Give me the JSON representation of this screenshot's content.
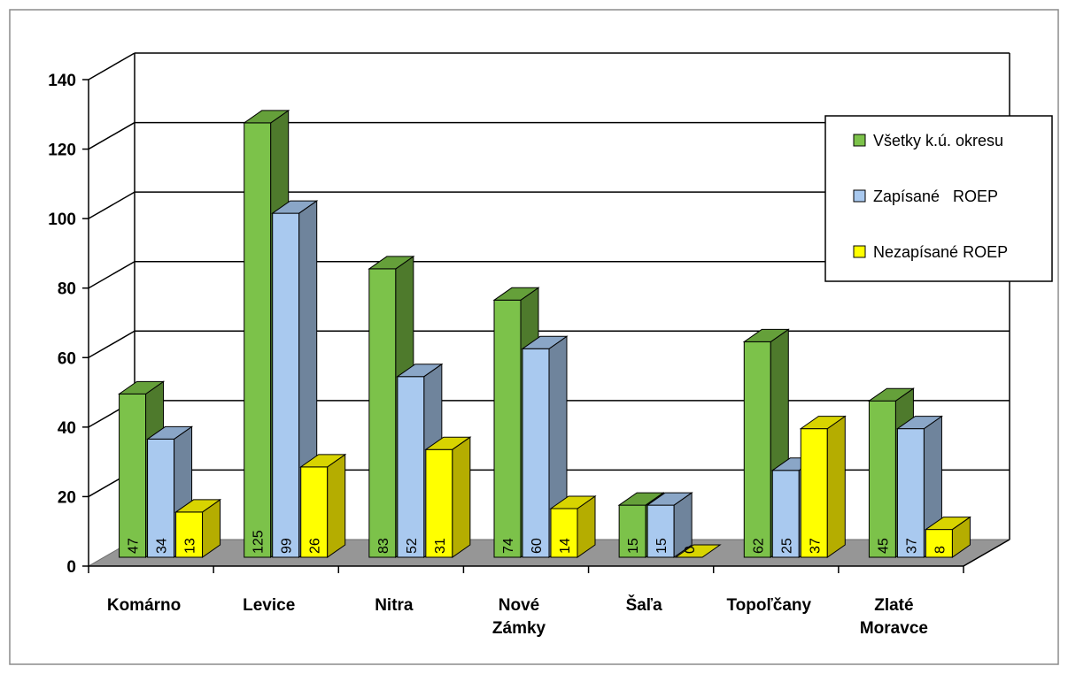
{
  "chart_data": {
    "type": "bar",
    "style": "3d-clustered-column",
    "categories": [
      "Komárno",
      "Levice",
      "Nitra",
      "Nové Zámky",
      "Šaľa",
      "Topoľčany",
      "Zlaté Moravce"
    ],
    "category_lines": [
      [
        "Komárno"
      ],
      [
        "Levice"
      ],
      [
        "Nitra"
      ],
      [
        "Nové",
        "Zámky"
      ],
      [
        "Šaľa"
      ],
      [
        "Topoľčany"
      ],
      [
        "Zlaté",
        "Moravce"
      ]
    ],
    "series": [
      {
        "name": "Všetky k.ú. okresu",
        "values": [
          47,
          125,
          83,
          74,
          15,
          62,
          45
        ],
        "color": "#7cc24a",
        "side_color": "#4e7a2c",
        "top_color": "#65a03a"
      },
      {
        "name": "Zapísané   ROEP",
        "values": [
          34,
          99,
          52,
          60,
          15,
          25,
          37
        ],
        "color": "#a9c9ef",
        "side_color": "#6f849c",
        "top_color": "#8aa6c7"
      },
      {
        "name": "Nezapísané ROEP",
        "values": [
          13,
          26,
          31,
          14,
          0,
          37,
          8
        ],
        "color": "#ffff00",
        "side_color": "#b5ad00",
        "top_color": "#d8d400"
      }
    ],
    "yticks": [
      0,
      20,
      40,
      60,
      80,
      100,
      120,
      140
    ],
    "ylim": [
      0,
      140
    ],
    "grid": true,
    "legend_position": "right",
    "floor_color": "#969696",
    "title": "",
    "xlabel": "",
    "ylabel": ""
  }
}
